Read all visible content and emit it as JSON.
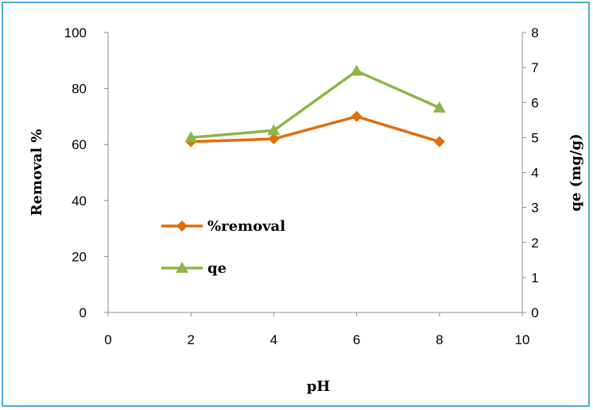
{
  "chart_data": {
    "type": "line",
    "xlabel": "pH",
    "ylabel": "Removal %",
    "y2label": "qe (mg/g)",
    "xlim": [
      0,
      10
    ],
    "ylim": [
      0,
      100
    ],
    "y2lim": [
      0,
      8
    ],
    "xticks": [
      0,
      2,
      4,
      6,
      8,
      10
    ],
    "yticks": [
      0,
      20,
      40,
      60,
      80,
      100
    ],
    "y2ticks": [
      0,
      1,
      2,
      3,
      4,
      5,
      6,
      7,
      8
    ],
    "grid": false,
    "legend_position": "center-left",
    "series": [
      {
        "name": "%removal",
        "axis": "left",
        "marker": "diamond",
        "color": "#E46C0A",
        "x": [
          2,
          4,
          6,
          8
        ],
        "values": [
          61,
          62,
          70,
          61
        ]
      },
      {
        "name": "qe",
        "axis": "right",
        "marker": "triangle",
        "color": "#8DB646",
        "x": [
          2,
          4,
          6,
          8
        ],
        "values": [
          5.0,
          5.2,
          6.9,
          5.85
        ]
      }
    ]
  }
}
